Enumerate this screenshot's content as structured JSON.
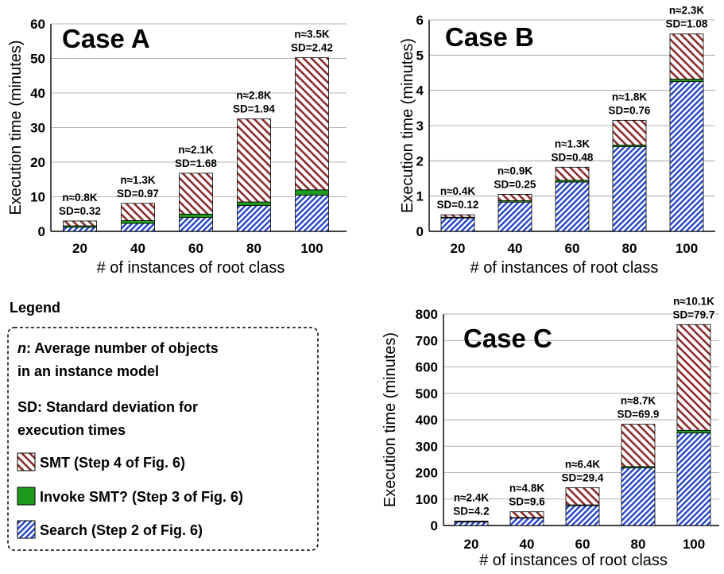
{
  "legend": {
    "title": "Legend",
    "n_sym": "n",
    "n_desc_1": ": Average number of objects",
    "n_desc_2": "in an instance model",
    "sd_sym": "SD",
    "sd_desc_1": ": Standard deviation for",
    "sd_desc_2": "execution times",
    "items": [
      {
        "label": "SMT (Step 4 of Fig. 6)",
        "pattern": "hatch-red"
      },
      {
        "label": "Invoke SMT? (Step 3 of Fig. 6)",
        "pattern": "solid-green"
      },
      {
        "label": "Search (Step 2 of Fig. 6)",
        "pattern": "hatch-blue"
      }
    ]
  },
  "colors": {
    "smt": "#8b2a2a",
    "invoke": "#1e9a1e",
    "search": "#2345c8"
  },
  "chart_data": [
    {
      "type": "bar",
      "stacked": true,
      "title": "Case A",
      "xlabel": "# of instances of root class",
      "ylabel": "Execution time (minutes)",
      "ylim": [
        0,
        60
      ],
      "yticks": [
        0,
        10,
        20,
        30,
        40,
        50,
        60
      ],
      "categories": [
        "20",
        "40",
        "60",
        "80",
        "100"
      ],
      "series": [
        {
          "key": "search",
          "values": [
            1.2,
            2.3,
            4.0,
            7.5,
            10.5
          ]
        },
        {
          "key": "invoke",
          "values": [
            0.4,
            0.8,
            1.0,
            1.0,
            1.5
          ]
        },
        {
          "key": "smt",
          "values": [
            1.4,
            5.0,
            11.8,
            24.0,
            38.2
          ]
        }
      ],
      "annotations": [
        {
          "n": "n≈0.8K",
          "sd": "SD=0.32"
        },
        {
          "n": "n≈1.3K",
          "sd": "SD=0.97"
        },
        {
          "n": "n≈2.1K",
          "sd": "SD=1.68"
        },
        {
          "n": "n≈2.8K",
          "sd": "SD=1.94"
        },
        {
          "n": "n≈3.5K",
          "sd": "SD=2.42"
        }
      ]
    },
    {
      "type": "bar",
      "stacked": true,
      "title": "Case B",
      "xlabel": "# of instances of root class",
      "ylabel": "Execution time (minutes)",
      "ylim": [
        0,
        6
      ],
      "yticks": [
        0,
        1,
        2,
        3,
        4,
        5,
        6
      ],
      "categories": [
        "20",
        "40",
        "60",
        "80",
        "100"
      ],
      "series": [
        {
          "key": "search",
          "values": [
            0.38,
            0.83,
            1.4,
            2.4,
            4.25
          ]
        },
        {
          "key": "invoke",
          "values": [
            0.02,
            0.04,
            0.05,
            0.05,
            0.07
          ]
        },
        {
          "key": "smt",
          "values": [
            0.07,
            0.18,
            0.37,
            0.7,
            1.28
          ]
        }
      ],
      "annotations": [
        {
          "n": "n≈0.4K",
          "sd": "SD=0.12"
        },
        {
          "n": "n≈0.9K",
          "sd": "SD=0.25"
        },
        {
          "n": "n≈1.3K",
          "sd": "SD=0.48"
        },
        {
          "n": "n≈1.8K",
          "sd": "SD=0.76"
        },
        {
          "n": "n≈2.3K",
          "sd": "SD=1.08"
        }
      ]
    },
    {
      "type": "bar",
      "stacked": true,
      "title": "Case C",
      "xlabel": "# of instances of root class",
      "ylabel": "Execution time (minutes)",
      "ylim": [
        0,
        800
      ],
      "yticks": [
        0,
        100,
        200,
        300,
        400,
        500,
        600,
        700,
        800
      ],
      "categories": [
        "20",
        "40",
        "60",
        "80",
        "100"
      ],
      "series": [
        {
          "key": "search",
          "values": [
            13,
            28,
            75,
            218,
            350
          ]
        },
        {
          "key": "invoke",
          "values": [
            1,
            2,
            3,
            5,
            10
          ]
        },
        {
          "key": "smt",
          "values": [
            3,
            22,
            65,
            160,
            400
          ]
        }
      ],
      "annotations": [
        {
          "n": "n≈2.4K",
          "sd": "SD=4.2"
        },
        {
          "n": "n≈4.8K",
          "sd": "SD=9.6"
        },
        {
          "n": "n≈6.4K",
          "sd": "SD=29.4"
        },
        {
          "n": "n≈8.7K",
          "sd": "SD=69.9"
        },
        {
          "n": "n≈10.1K",
          "sd": "SD=79.7"
        }
      ]
    }
  ]
}
